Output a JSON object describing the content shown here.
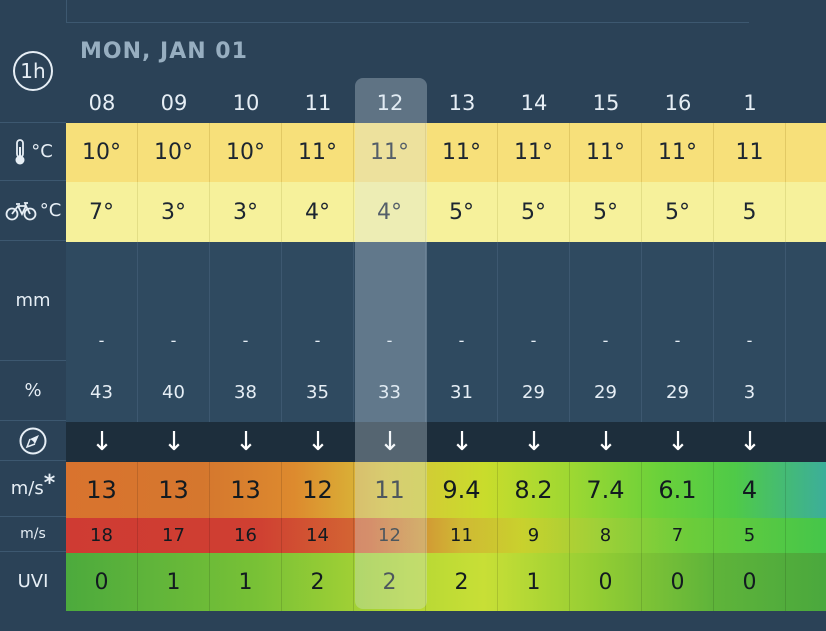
{
  "sidebar": {
    "hour_mode": "1h",
    "temp_unit": "°C",
    "feel_unit": "°C",
    "rain_unit": "mm",
    "humidity_unit": "%",
    "wind_unit": "m/s",
    "wind_marker": "*",
    "gust_unit": "m/s",
    "uvi_label": "UVI"
  },
  "header": {
    "date": "MON, JAN 01"
  },
  "hours": [
    "08",
    "09",
    "10",
    "11",
    "12",
    "13",
    "14",
    "15",
    "16",
    "1"
  ],
  "temperature": [
    "10°",
    "10°",
    "10°",
    "11°",
    "11°",
    "11°",
    "11°",
    "11°",
    "11°",
    "11"
  ],
  "feels_like": [
    "7°",
    "3°",
    "3°",
    "4°",
    "4°",
    "5°",
    "5°",
    "5°",
    "5°",
    "5"
  ],
  "rain": [
    "-",
    "-",
    "-",
    "-",
    "-",
    "-",
    "-",
    "-",
    "-",
    "-"
  ],
  "humidity": [
    "43",
    "40",
    "38",
    "35",
    "33",
    "31",
    "29",
    "29",
    "29",
    "3"
  ],
  "wind_direction": [
    "↓",
    "↓",
    "↓",
    "↓",
    "↓",
    "↓",
    "↓",
    "↓",
    "↓",
    "↓"
  ],
  "wind_speed": [
    "13",
    "13",
    "13",
    "12",
    "11",
    "9.4",
    "8.2",
    "7.4",
    "6.1",
    "4"
  ],
  "wind_gust": [
    "18",
    "17",
    "16",
    "14",
    "12",
    "11",
    "9",
    "8",
    "7",
    "5"
  ],
  "uv_index": [
    "0",
    "1",
    "1",
    "2",
    "2",
    "2",
    "1",
    "0",
    "0",
    "0"
  ],
  "selected_hour": "12"
}
